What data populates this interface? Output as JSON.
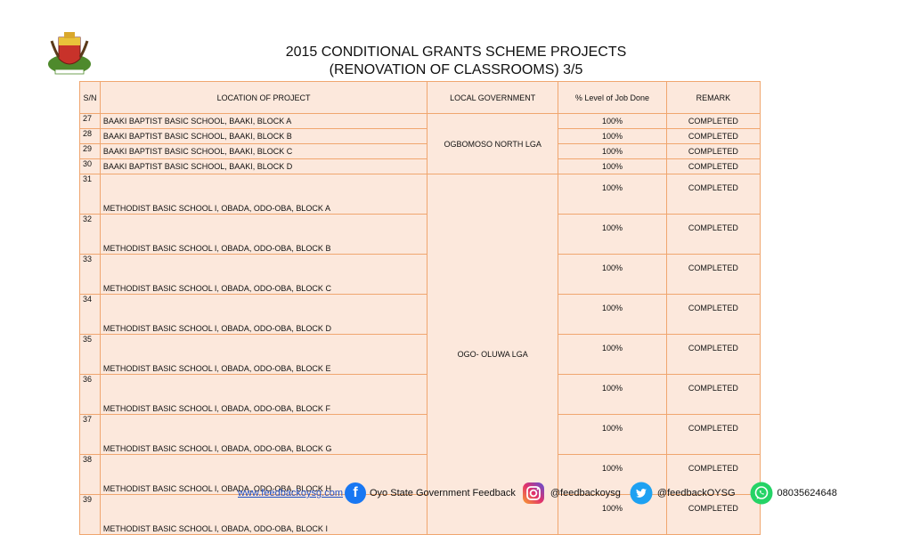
{
  "header": {
    "title_line1": "2015 CONDITIONAL GRANTS SCHEME PROJECTS",
    "title_line2": "(RENOVATION OF CLASSROOMS) 3/5"
  },
  "table": {
    "headers": {
      "sn": "S/N",
      "location": "LOCATION OF PROJECT",
      "lga": "LOCAL GOVERNMENT",
      "level": "% Level  of Job Done",
      "remark": "REMARK"
    },
    "groups": [
      {
        "lga": "OGBOMOSO NORTH LGA"
      },
      {
        "lga": "OGO- OLUWA LGA"
      }
    ],
    "rows": [
      {
        "sn": "27",
        "location": "BAAKI BAPTIST BASIC SCHOOL, BAAKI, BLOCK A",
        "level": "100%",
        "remark": "COMPLETED"
      },
      {
        "sn": "28",
        "location": "BAAKI BAPTIST BASIC SCHOOL, BAAKI, BLOCK B",
        "level": "100%",
        "remark": "COMPLETED"
      },
      {
        "sn": "29",
        "location": "BAAKI BAPTIST BASIC SCHOOL, BAAKI, BLOCK C",
        "level": "100%",
        "remark": "COMPLETED"
      },
      {
        "sn": "30",
        "location": "BAAKI BAPTIST BASIC SCHOOL, BAAKI, BLOCK D",
        "level": "100%",
        "remark": "COMPLETED"
      },
      {
        "sn": "31",
        "location": "METHODIST BASIC SCHOOL I, OBADA, ODO-OBA, BLOCK A",
        "level": "100%",
        "remark": "COMPLETED"
      },
      {
        "sn": "32",
        "location": "METHODIST BASIC SCHOOL I, OBADA, ODO-OBA, BLOCK B",
        "level": "100%",
        "remark": "COMPLETED"
      },
      {
        "sn": "33",
        "location": "METHODIST BASIC SCHOOL I, OBADA, ODO-OBA, BLOCK C",
        "level": "100%",
        "remark": "COMPLETED"
      },
      {
        "sn": "34",
        "location": "METHODIST BASIC SCHOOL I, OBADA, ODO-OBA, BLOCK D",
        "level": "100%",
        "remark": "COMPLETED"
      },
      {
        "sn": "35",
        "location": "METHODIST BASIC SCHOOL I, OBADA, ODO-OBA, BLOCK E",
        "level": "100%",
        "remark": "COMPLETED"
      },
      {
        "sn": "36",
        "location": "METHODIST BASIC SCHOOL I, OBADA, ODO-OBA, BLOCK F",
        "level": "100%",
        "remark": "COMPLETED"
      },
      {
        "sn": "37",
        "location": "METHODIST BASIC SCHOOL I, OBADA, ODO-OBA, BLOCK G",
        "level": "100%",
        "remark": "COMPLETED"
      },
      {
        "sn": "38",
        "location": "METHODIST BASIC SCHOOL I, OBADA, ODO-OBA, BLOCK H",
        "level": "100%",
        "remark": "COMPLETED"
      },
      {
        "sn": "39",
        "location": "METHODIST BASIC SCHOOL I, OBADA, ODO-OBA, BLOCK I",
        "level": "100%",
        "remark": "COMPLETED"
      }
    ]
  },
  "footer": {
    "website": "www.feedbackoysg.com",
    "facebook": "Oyo State Government Feedback",
    "instagram": "@feedbackoysg",
    "twitter": "@feedbackOYSG",
    "whatsapp": "08035624648",
    "icons": {
      "facebook": "facebook-icon",
      "instagram": "instagram-icon",
      "twitter": "twitter-icon",
      "whatsapp": "whatsapp-icon"
    }
  },
  "colors": {
    "table_fill": "#fce8dc",
    "table_border": "#f0a66f",
    "link": "#1d4fc4",
    "facebook": "#1877f2",
    "twitter": "#1da1f2",
    "whatsapp": "#25d366"
  }
}
